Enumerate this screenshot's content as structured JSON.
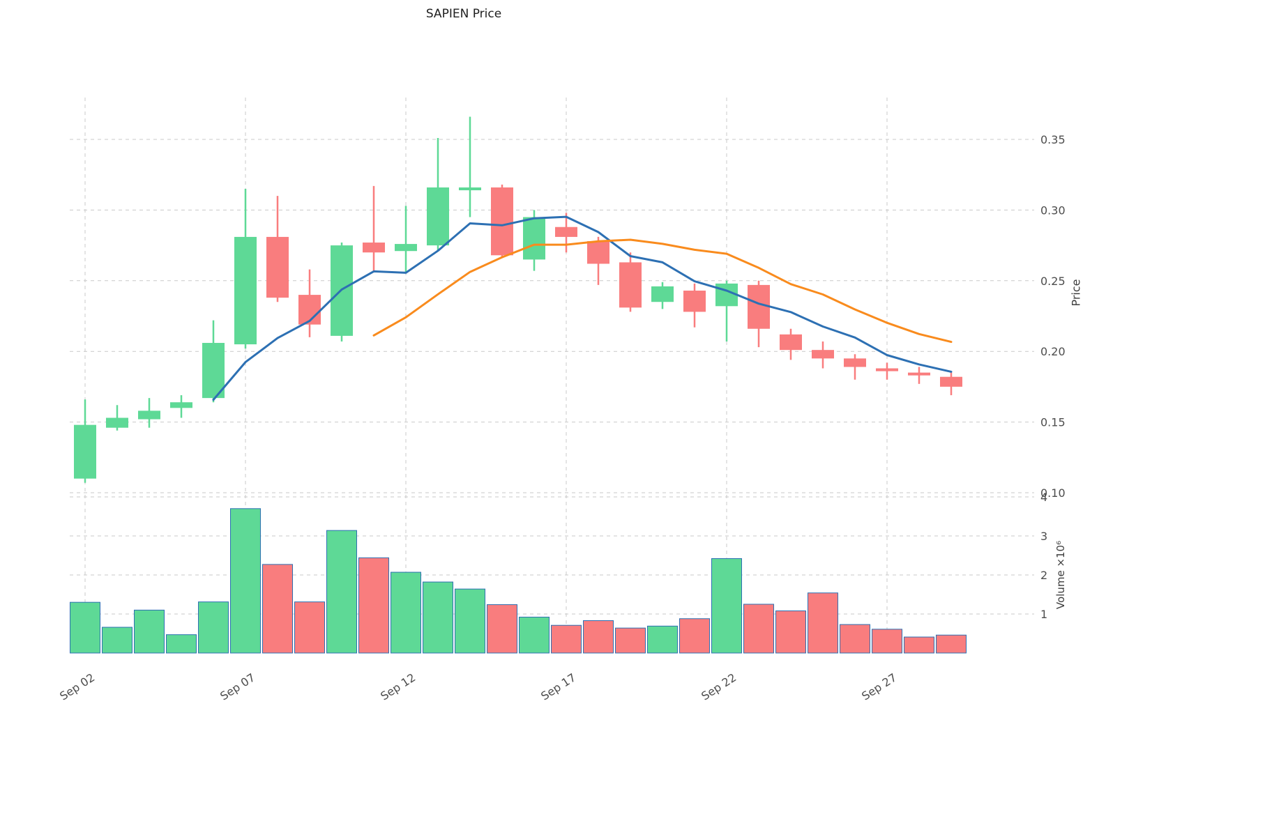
{
  "chart_data": {
    "type": "candlestick",
    "title": "SAPIEN Price",
    "grid": "dashed",
    "legend": "none",
    "price_axis": {
      "label": "Price",
      "side": "right",
      "tick_labels": [
        "0.10",
        "0.15",
        "0.20",
        "0.25",
        "0.30",
        "0.35"
      ],
      "tick_values": [
        0.1,
        0.15,
        0.2,
        0.25,
        0.3,
        0.35
      ],
      "ylim": [
        0.1,
        0.37
      ]
    },
    "volume_axis": {
      "label": "Volume ×10⁶",
      "side": "right",
      "tick_labels": [
        "1",
        "2",
        "3",
        "4"
      ],
      "tick_values": [
        1,
        2,
        3,
        4
      ],
      "ylim": [
        0,
        4
      ]
    },
    "x_axis": {
      "tick_labels": [
        "Sep 02",
        "Sep 07",
        "Sep 12",
        "Sep 17",
        "Sep 22",
        "Sep 27"
      ],
      "tick_indices": [
        0,
        5,
        10,
        15,
        20,
        25
      ]
    },
    "candles": [
      {
        "date": "Sep 02",
        "o": 0.11,
        "h": 0.166,
        "l": 0.107,
        "c": 0.148,
        "v": 1.3
      },
      {
        "date": "Sep 03",
        "o": 0.146,
        "h": 0.162,
        "l": 0.144,
        "c": 0.153,
        "v": 0.66
      },
      {
        "date": "Sep 04",
        "o": 0.152,
        "h": 0.167,
        "l": 0.146,
        "c": 0.158,
        "v": 1.1
      },
      {
        "date": "Sep 05",
        "o": 0.16,
        "h": 0.169,
        "l": 0.153,
        "c": 0.164,
        "v": 0.47
      },
      {
        "date": "Sep 06",
        "o": 0.167,
        "h": 0.222,
        "l": 0.164,
        "c": 0.206,
        "v": 1.31
      },
      {
        "date": "Sep 07",
        "o": 0.205,
        "h": 0.315,
        "l": 0.202,
        "c": 0.281,
        "v": 3.7
      },
      {
        "date": "Sep 08",
        "o": 0.281,
        "h": 0.31,
        "l": 0.235,
        "c": 0.238,
        "v": 2.27
      },
      {
        "date": "Sep 09",
        "o": 0.24,
        "h": 0.258,
        "l": 0.21,
        "c": 0.219,
        "v": 1.31
      },
      {
        "date": "Sep 10",
        "o": 0.211,
        "h": 0.277,
        "l": 0.207,
        "c": 0.275,
        "v": 3.14
      },
      {
        "date": "Sep 11",
        "o": 0.277,
        "h": 0.317,
        "l": 0.257,
        "c": 0.27,
        "v": 2.44
      },
      {
        "date": "Sep 12",
        "o": 0.271,
        "h": 0.303,
        "l": 0.256,
        "c": 0.276,
        "v": 2.07
      },
      {
        "date": "Sep 13",
        "o": 0.275,
        "h": 0.351,
        "l": 0.271,
        "c": 0.316,
        "v": 1.82
      },
      {
        "date": "Sep 14",
        "o": 0.314,
        "h": 0.366,
        "l": 0.295,
        "c": 0.316,
        "v": 1.64
      },
      {
        "date": "Sep 15",
        "o": 0.316,
        "h": 0.318,
        "l": 0.266,
        "c": 0.268,
        "v": 1.24
      },
      {
        "date": "Sep 16",
        "o": 0.265,
        "h": 0.3,
        "l": 0.257,
        "c": 0.295,
        "v": 0.92
      },
      {
        "date": "Sep 17",
        "o": 0.288,
        "h": 0.298,
        "l": 0.27,
        "c": 0.281,
        "v": 0.71
      },
      {
        "date": "Sep 18",
        "o": 0.278,
        "h": 0.281,
        "l": 0.247,
        "c": 0.262,
        "v": 0.83
      },
      {
        "date": "Sep 19",
        "o": 0.263,
        "h": 0.27,
        "l": 0.228,
        "c": 0.231,
        "v": 0.64
      },
      {
        "date": "Sep 20",
        "o": 0.235,
        "h": 0.249,
        "l": 0.23,
        "c": 0.246,
        "v": 0.69
      },
      {
        "date": "Sep 21",
        "o": 0.243,
        "h": 0.248,
        "l": 0.217,
        "c": 0.228,
        "v": 0.88
      },
      {
        "date": "Sep 22",
        "o": 0.232,
        "h": 0.25,
        "l": 0.207,
        "c": 0.248,
        "v": 2.42
      },
      {
        "date": "Sep 23",
        "o": 0.247,
        "h": 0.25,
        "l": 0.203,
        "c": 0.216,
        "v": 1.25
      },
      {
        "date": "Sep 24",
        "o": 0.212,
        "h": 0.216,
        "l": 0.194,
        "c": 0.201,
        "v": 1.08
      },
      {
        "date": "Sep 25",
        "o": 0.201,
        "h": 0.207,
        "l": 0.188,
        "c": 0.195,
        "v": 1.54
      },
      {
        "date": "Sep 26",
        "o": 0.195,
        "h": 0.198,
        "l": 0.18,
        "c": 0.189,
        "v": 0.73
      },
      {
        "date": "Sep 27",
        "o": 0.188,
        "h": 0.192,
        "l": 0.18,
        "c": 0.186,
        "v": 0.61
      },
      {
        "date": "Sep 28",
        "o": 0.185,
        "h": 0.189,
        "l": 0.177,
        "c": 0.183,
        "v": 0.41
      },
      {
        "date": "Sep 29",
        "o": 0.182,
        "h": 0.185,
        "l": 0.169,
        "c": 0.175,
        "v": 0.46
      }
    ],
    "series": [
      {
        "name": "ma_fast",
        "color": "#2D70B3",
        "values": [
          null,
          null,
          null,
          null,
          0.1658,
          0.1924,
          0.2094,
          0.2216,
          0.2438,
          0.2566,
          0.2556,
          0.2712,
          0.2906,
          0.2892,
          0.2942,
          0.2952,
          0.2844,
          0.2674,
          0.263,
          0.2496,
          0.243,
          0.2338,
          0.2278,
          0.2176,
          0.2098,
          0.1974,
          0.1908,
          0.1856
        ]
      },
      {
        "name": "ma_slow",
        "color": "#F98B1D",
        "values": [
          null,
          null,
          null,
          null,
          null,
          null,
          null,
          null,
          null,
          0.2113,
          0.2241,
          0.2404,
          0.2562,
          0.2666,
          0.2755,
          0.2755,
          0.2779,
          0.279,
          0.2761,
          0.2719,
          0.2691,
          0.2591,
          0.2476,
          0.2403,
          0.2297,
          0.2202,
          0.2123,
          0.2067
        ]
      }
    ],
    "colors": {
      "up": "#5ED996",
      "down": "#F97D7E",
      "volume_edge": "#2D70B3",
      "grid": "#C9C9C9",
      "tick_text": "#4D4D4D",
      "title_text": "#1F1F1F",
      "background": "#FFFFFF"
    }
  }
}
